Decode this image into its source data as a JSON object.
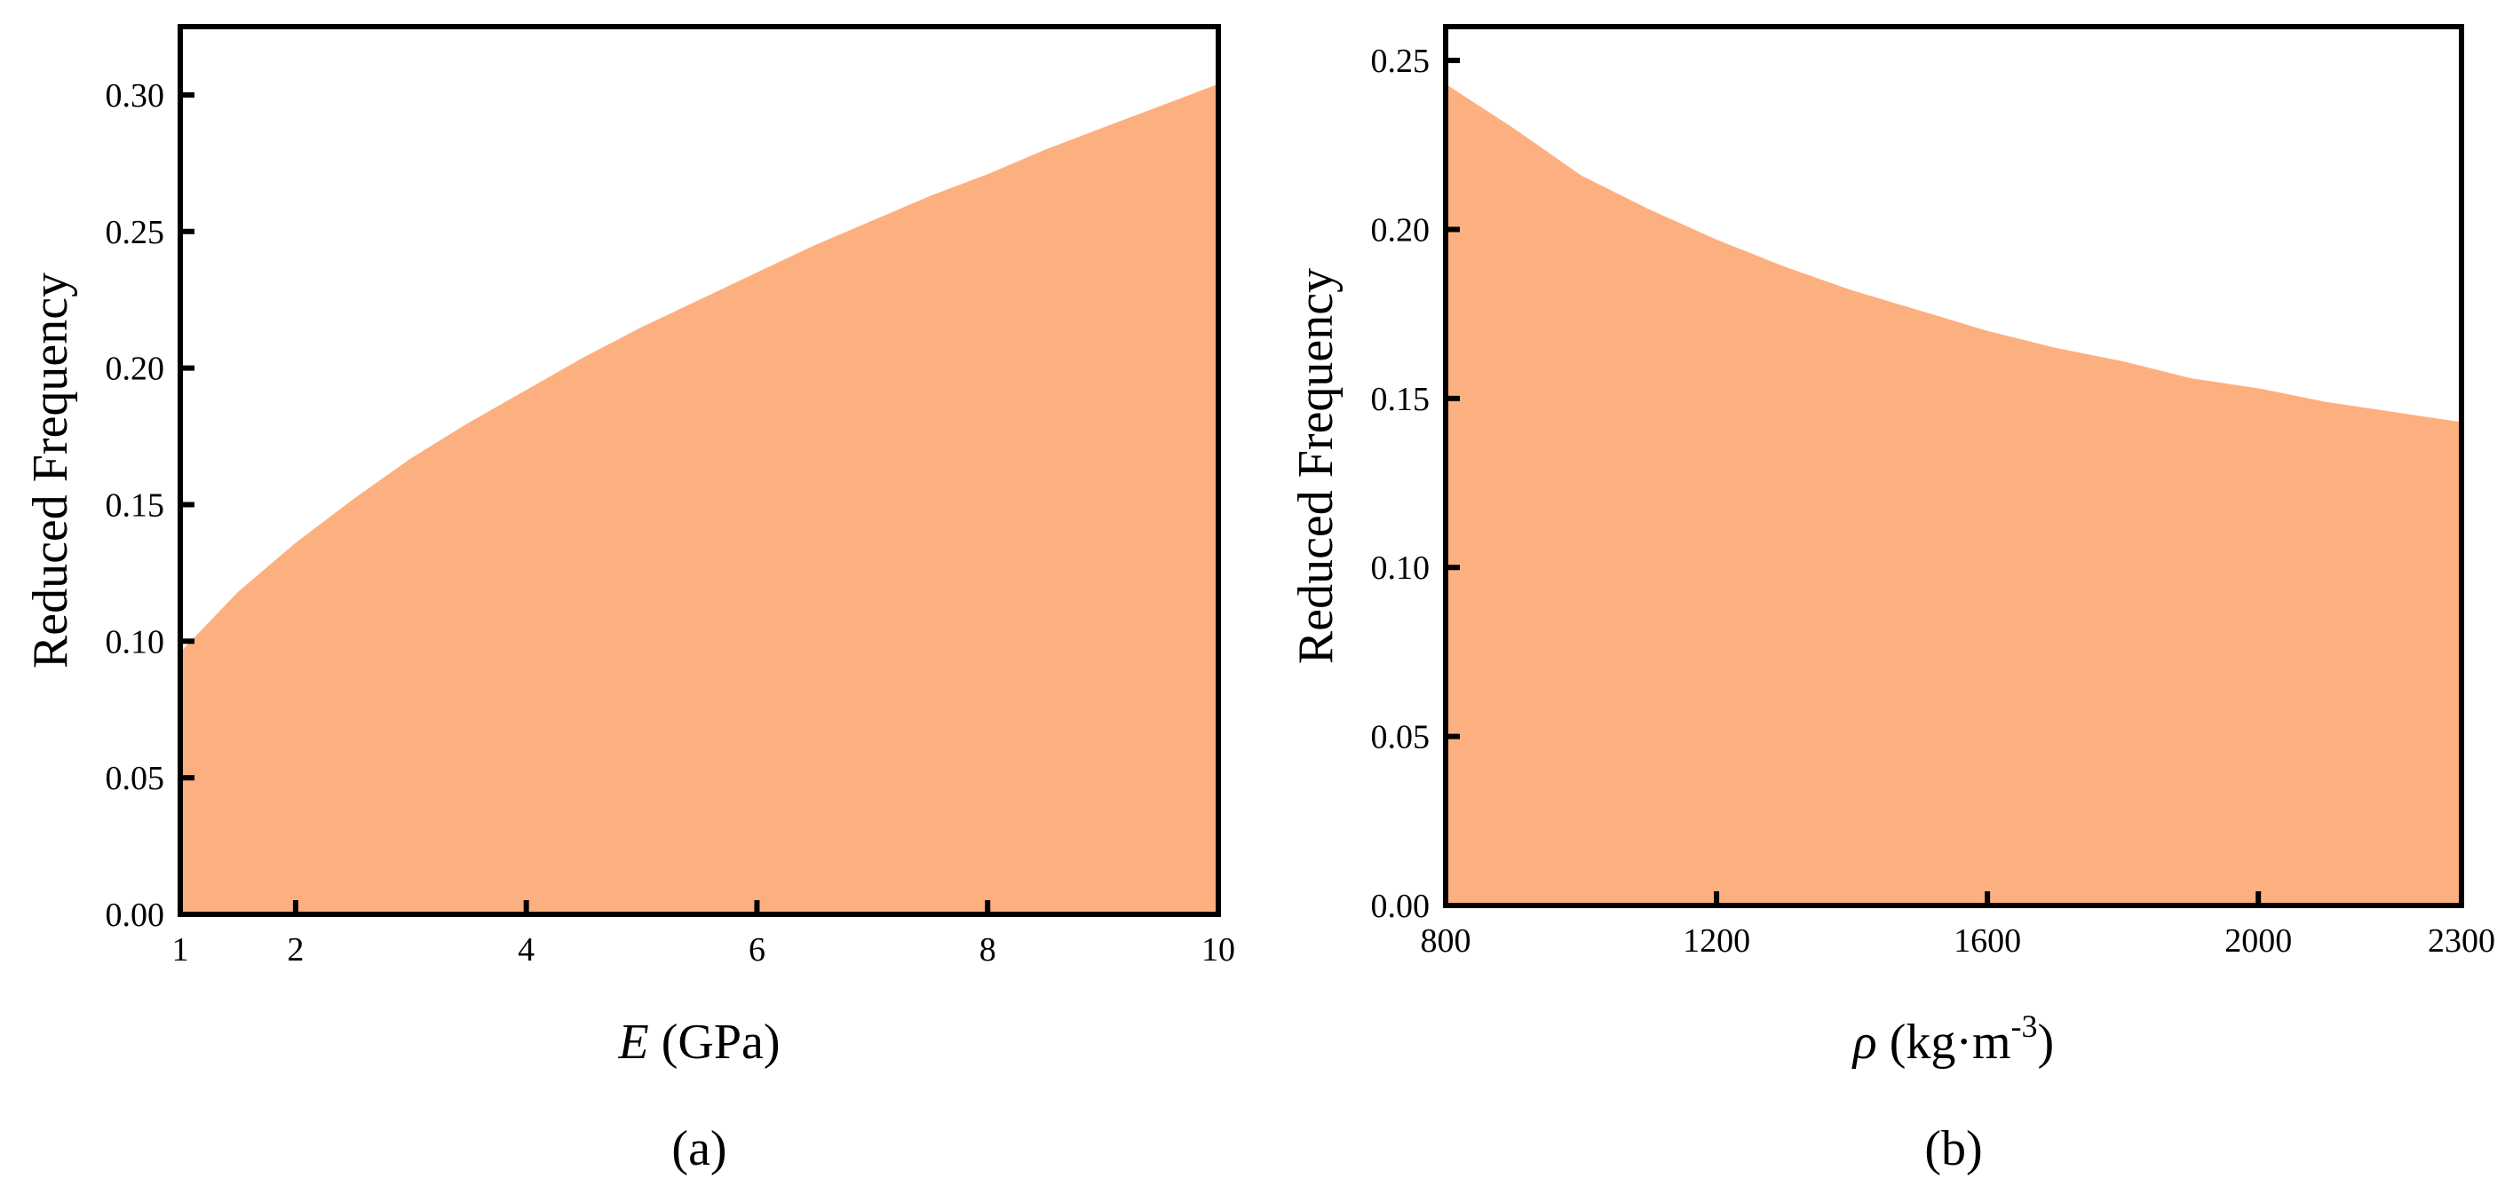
{
  "chart_data": [
    {
      "type": "area",
      "panel_label": "(a)",
      "xlabel": {
        "symbol": "E",
        "rest": " (GPa)"
      },
      "ylabel": "Reduced Frequency",
      "xlim": [
        1,
        10
      ],
      "ylim": [
        0,
        0.325
      ],
      "xticks": [
        1,
        2,
        4,
        6,
        8,
        10
      ],
      "yticks": [
        0.0,
        0.05,
        0.1,
        0.15,
        0.2,
        0.25,
        0.3
      ],
      "ytick_labels": [
        "0.00",
        "0.05",
        "0.10",
        "0.15",
        "0.20",
        "0.25",
        "0.30"
      ],
      "x": [
        1,
        1.5,
        2,
        2.5,
        3,
        3.5,
        4,
        4.5,
        5,
        5.5,
        6,
        6.5,
        7,
        7.5,
        8,
        8.5,
        9,
        9.5,
        10
      ],
      "values": [
        0.096,
        0.118,
        0.136,
        0.152,
        0.167,
        0.18,
        0.192,
        0.204,
        0.215,
        0.225,
        0.235,
        0.245,
        0.254,
        0.263,
        0.271,
        0.28,
        0.288,
        0.296,
        0.304
      ],
      "fill_color": "#FDB07F",
      "grid": false
    },
    {
      "type": "area",
      "panel_label": "(b)",
      "xlabel": {
        "symbol": "ρ",
        "rest": " (kg·m",
        "sup": "-3",
        "close": ")"
      },
      "ylabel": "Reduced Frequency",
      "xlim": [
        800,
        2300
      ],
      "ylim": [
        0,
        0.26
      ],
      "xticks": [
        800,
        1200,
        1600,
        2000,
        2300
      ],
      "yticks": [
        0.0,
        0.05,
        0.1,
        0.15,
        0.2,
        0.25
      ],
      "ytick_labels": [
        "0.00",
        "0.05",
        "0.10",
        "0.15",
        "0.20",
        "0.25"
      ],
      "x": [
        800,
        900,
        1000,
        1100,
        1200,
        1300,
        1400,
        1500,
        1600,
        1700,
        1800,
        1900,
        2000,
        2100,
        2200,
        2300
      ],
      "values": [
        0.243,
        0.23,
        0.216,
        0.206,
        0.197,
        0.189,
        0.182,
        0.176,
        0.17,
        0.165,
        0.161,
        0.156,
        0.153,
        0.149,
        0.146,
        0.143
      ],
      "fill_color": "#FDB07F",
      "grid": false
    }
  ]
}
